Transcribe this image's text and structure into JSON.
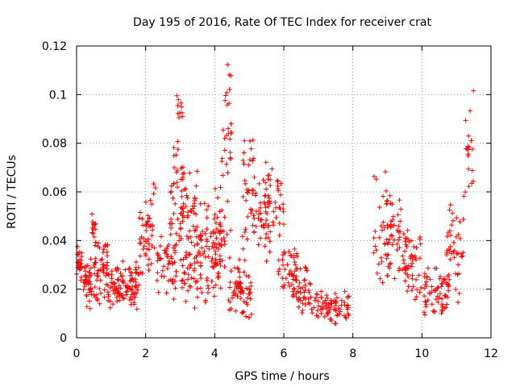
{
  "chart_data": {
    "type": "scatter",
    "title": "Day 195 of 2016, Rate Of TEC Index for receiver crat",
    "xlabel": "GPS time / hours",
    "ylabel": "ROTI / TECUs",
    "xlim": [
      0,
      12
    ],
    "ylim": [
      0,
      0.12
    ],
    "grid": true,
    "marker": "+",
    "color": "#ff0000",
    "x_ticks": [
      0,
      2,
      4,
      6,
      8,
      10,
      12
    ],
    "x_tick_labels": [
      "0",
      "2",
      "4",
      "6",
      "8",
      "10",
      "12"
    ],
    "y_ticks": [
      0,
      0.02,
      0.04,
      0.06,
      0.08,
      0.1,
      0.12
    ],
    "y_tick_labels": [
      "0",
      "0.02",
      "0.04",
      "0.06",
      "0.08",
      "0.1",
      "0.12"
    ],
    "series": [
      {
        "name": "ROTI",
        "clusters": [
          {
            "x": [
              0.0,
              0.15
            ],
            "y": [
              0.02,
              0.042
            ],
            "n": 25
          },
          {
            "x": [
              0.2,
              0.45
            ],
            "y": [
              0.01,
              0.035
            ],
            "n": 40
          },
          {
            "x": [
              0.4,
              0.55
            ],
            "y": [
              0.035,
              0.054
            ],
            "n": 15
          },
          {
            "x": [
              0.5,
              0.9
            ],
            "y": [
              0.012,
              0.045
            ],
            "n": 55
          },
          {
            "x": [
              0.9,
              1.8
            ],
            "y": [
              0.01,
              0.032
            ],
            "n": 110
          },
          {
            "x": [
              1.8,
              2.2
            ],
            "y": [
              0.025,
              0.056
            ],
            "n": 30
          },
          {
            "x": [
              2.0,
              2.3
            ],
            "y": [
              0.03,
              0.067
            ],
            "n": 20
          },
          {
            "x": [
              2.3,
              2.9
            ],
            "y": [
              0.015,
              0.045
            ],
            "n": 50
          },
          {
            "x": [
              2.7,
              3.1
            ],
            "y": [
              0.03,
              0.086
            ],
            "n": 40
          },
          {
            "x": [
              2.9,
              3.1
            ],
            "y": [
              0.085,
              0.104
            ],
            "n": 10
          },
          {
            "x": [
              3.0,
              3.5
            ],
            "y": [
              0.03,
              0.075
            ],
            "n": 50
          },
          {
            "x": [
              3.0,
              3.6
            ],
            "y": [
              0.01,
              0.04
            ],
            "n": 40
          },
          {
            "x": [
              3.5,
              4.2
            ],
            "y": [
              0.012,
              0.06
            ],
            "n": 80
          },
          {
            "x": [
              4.0,
              4.3
            ],
            "y": [
              0.02,
              0.068
            ],
            "n": 30
          },
          {
            "x": [
              4.2,
              4.5
            ],
            "y": [
              0.04,
              0.118
            ],
            "n": 30
          },
          {
            "x": [
              4.4,
              4.8
            ],
            "y": [
              0.008,
              0.035
            ],
            "n": 35
          },
          {
            "x": [
              4.7,
              5.1
            ],
            "y": [
              0.006,
              0.03
            ],
            "n": 30
          },
          {
            "x": [
              4.8,
              5.2
            ],
            "y": [
              0.03,
              0.088
            ],
            "n": 35
          },
          {
            "x": [
              5.1,
              5.6
            ],
            "y": [
              0.03,
              0.07
            ],
            "n": 40
          },
          {
            "x": [
              5.4,
              6.0
            ],
            "y": [
              0.035,
              0.073
            ],
            "n": 40
          },
          {
            "x": [
              5.8,
              6.4
            ],
            "y": [
              0.015,
              0.04
            ],
            "n": 40
          },
          {
            "x": [
              6.2,
              6.8
            ],
            "y": [
              0.008,
              0.03
            ],
            "n": 50
          },
          {
            "x": [
              6.8,
              7.9
            ],
            "y": [
              0.005,
              0.02
            ],
            "n": 80
          },
          {
            "x": [
              8.6,
              9.1
            ],
            "y": [
              0.015,
              0.073
            ],
            "n": 40
          },
          {
            "x": [
              9.0,
              9.6
            ],
            "y": [
              0.02,
              0.06
            ],
            "n": 45
          },
          {
            "x": [
              9.5,
              10.0
            ],
            "y": [
              0.012,
              0.047
            ],
            "n": 45
          },
          {
            "x": [
              10.0,
              10.8
            ],
            "y": [
              0.008,
              0.03
            ],
            "n": 70
          },
          {
            "x": [
              10.7,
              11.2
            ],
            "y": [
              0.012,
              0.06
            ],
            "n": 40
          },
          {
            "x": [
              11.2,
              11.5
            ],
            "y": [
              0.045,
              0.108
            ],
            "n": 20
          }
        ]
      }
    ]
  }
}
